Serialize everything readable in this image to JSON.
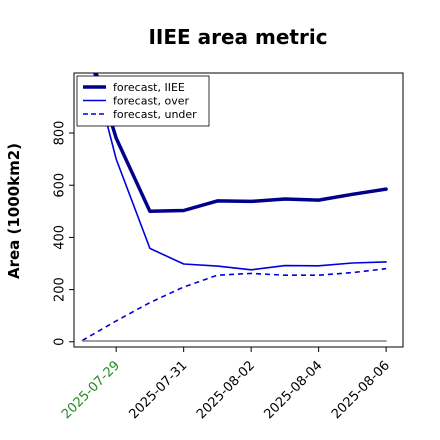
{
  "chart_data": {
    "type": "line",
    "title": "IIEE area metric",
    "xlabel": "",
    "ylabel": "Area (1000km2)",
    "ylim": [
      -20,
      1030
    ],
    "xlim": [
      "2025-07-27T18:00",
      "2025-08-06T12:00"
    ],
    "x_ticks": [
      "2025-07-29",
      "2025-07-31",
      "2025-08-02",
      "2025-08-04",
      "2025-08-06"
    ],
    "x_tick_colors": [
      "#228B22",
      "#000000",
      "#000000",
      "#000000",
      "#000000"
    ],
    "y_ticks": [
      0,
      200,
      400,
      600,
      800
    ],
    "grid": false,
    "legend_position": "upper left",
    "series": [
      {
        "name": "forecast, IIEE",
        "color": "#00008B",
        "style": "solid",
        "width": 3.5,
        "x": [
          "2025-07-28",
          "2025-07-29",
          "2025-07-30",
          "2025-07-31",
          "2025-08-01",
          "2025-08-02",
          "2025-08-03",
          "2025-08-04",
          "2025-08-05",
          "2025-08-06"
        ],
        "values": [
          1200,
          780,
          500,
          503,
          540,
          538,
          547,
          543,
          565,
          585
        ]
      },
      {
        "name": "forecast, over",
        "color": "#0000DD",
        "style": "solid",
        "width": 1.6,
        "x": [
          "2025-07-28",
          "2025-07-29",
          "2025-07-30",
          "2025-07-31",
          "2025-08-01",
          "2025-08-02",
          "2025-08-03",
          "2025-08-04",
          "2025-08-05",
          "2025-08-06"
        ],
        "values": [
          1200,
          700,
          358,
          298,
          290,
          276,
          292,
          291,
          302,
          306
        ]
      },
      {
        "name": "forecast, under",
        "color": "#0000DD",
        "style": "dashed",
        "width": 1.6,
        "x": [
          "2025-07-28",
          "2025-07-29",
          "2025-07-30",
          "2025-07-31",
          "2025-08-01",
          "2025-08-02",
          "2025-08-03",
          "2025-08-04",
          "2025-08-05",
          "2025-08-06"
        ],
        "values": [
          5,
          80,
          150,
          210,
          255,
          262,
          255,
          255,
          265,
          280
        ]
      },
      {
        "name": "",
        "color": "#808080",
        "style": "solid",
        "width": 1.4,
        "x": [
          "2025-07-28",
          "2025-08-06"
        ],
        "values": [
          3,
          3
        ]
      }
    ]
  }
}
